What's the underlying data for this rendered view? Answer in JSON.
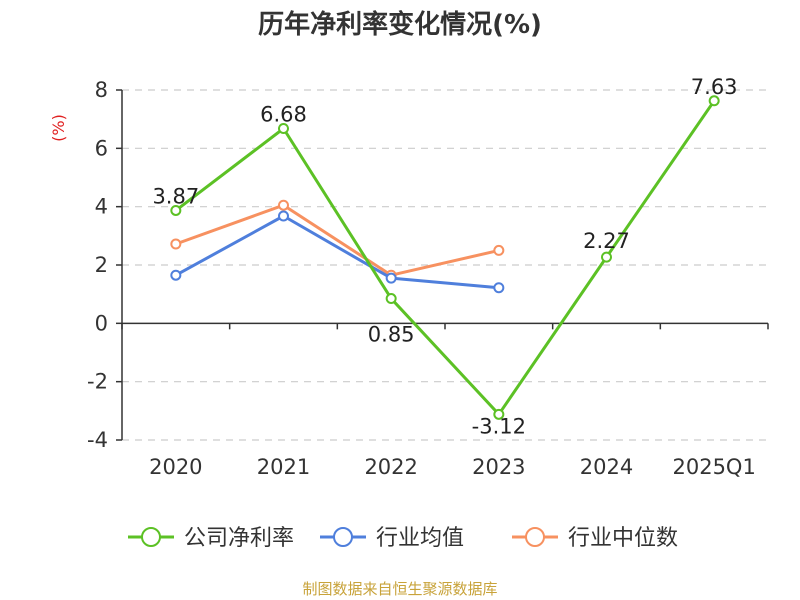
{
  "chart_data": {
    "type": "line",
    "title": "历年净利率变化情况(%)",
    "ylabel": "(%)",
    "categories": [
      "2020",
      "2021",
      "2022",
      "2023",
      "2024",
      "2025Q1"
    ],
    "ylim": [
      -4,
      8
    ],
    "yticks": [
      "8",
      "6",
      "4",
      "2",
      "0",
      "-2",
      "-4"
    ],
    "grid": true,
    "legend_position": "bottom",
    "series": [
      {
        "name": "公司净利率",
        "color": "#5cc125",
        "values": [
          3.87,
          6.68,
          0.85,
          -3.12,
          2.27,
          7.63
        ],
        "labels": [
          "3.87",
          "6.68",
          "0.85",
          "-3.12",
          "2.27",
          "7.63"
        ]
      },
      {
        "name": "行业均值",
        "color": "#4f7fdc",
        "values": [
          1.65,
          3.68,
          1.55,
          1.22,
          null,
          null
        ]
      },
      {
        "name": "行业中位数",
        "color": "#f79160",
        "values": [
          2.72,
          4.05,
          1.65,
          2.5,
          null,
          null
        ]
      }
    ]
  },
  "source": "制图数据来自恒生聚源数据库"
}
